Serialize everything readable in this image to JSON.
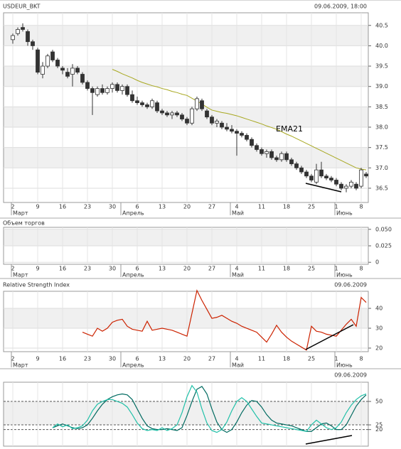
{
  "chart_data": [
    {
      "type": "candlestick",
      "title": "USDEUR_BKT",
      "subtitle": "09.06.2009, 18:00",
      "categories": [
        "2",
        null,
        null,
        null,
        null,
        "9",
        null,
        null,
        null,
        null,
        "16",
        null,
        null,
        null,
        null,
        "23",
        null,
        null,
        null,
        null,
        "30",
        null,
        null,
        null,
        null,
        "6",
        null,
        null,
        null,
        null,
        "13",
        null,
        null,
        null,
        null,
        "20",
        null,
        null,
        null,
        null,
        "27",
        null,
        null,
        null,
        null,
        "4",
        null,
        null,
        null,
        null,
        "11",
        null,
        null,
        null,
        null,
        "18",
        null,
        null,
        null,
        null,
        "25",
        null,
        null,
        null,
        null,
        "1",
        null,
        null,
        null,
        null,
        "8",
        null
      ],
      "month_labels": [
        "Март",
        null,
        null,
        null,
        null,
        null,
        null,
        null,
        null,
        null,
        null,
        null,
        null,
        null,
        null,
        null,
        null,
        null,
        null,
        null,
        null,
        null,
        "Апрель",
        null,
        null,
        null,
        null,
        null,
        null,
        null,
        null,
        null,
        null,
        null,
        null,
        null,
        null,
        null,
        null,
        null,
        null,
        null,
        null,
        null,
        "Май",
        null,
        null,
        null,
        null,
        null,
        null,
        null,
        null,
        null,
        null,
        null,
        null,
        null,
        null,
        null,
        null,
        null,
        null,
        null,
        null,
        "Июнь",
        null,
        null,
        null,
        null,
        null,
        null
      ],
      "ohlc": [
        [
          40.15,
          40.3,
          40.05,
          40.25
        ],
        [
          40.3,
          40.45,
          40.25,
          40.4
        ],
        [
          40.45,
          40.55,
          40.35,
          40.4
        ],
        [
          40.35,
          40.4,
          40.0,
          40.1
        ],
        [
          40.1,
          40.15,
          39.9,
          40.0
        ],
        [
          39.9,
          39.95,
          39.3,
          39.35
        ],
        [
          39.3,
          39.6,
          39.2,
          39.5
        ],
        [
          39.5,
          39.8,
          39.45,
          39.75
        ],
        [
          39.85,
          39.9,
          39.6,
          39.65
        ],
        [
          39.65,
          39.7,
          39.45,
          39.5
        ],
        [
          39.45,
          39.5,
          39.3,
          39.4
        ],
        [
          39.35,
          39.45,
          39.2,
          39.25
        ],
        [
          39.3,
          39.55,
          39.0,
          39.45
        ],
        [
          39.45,
          39.5,
          39.3,
          39.35
        ],
        [
          39.3,
          39.35,
          39.05,
          39.1
        ],
        [
          39.1,
          39.15,
          38.9,
          38.95
        ],
        [
          38.95,
          39.0,
          38.3,
          38.85
        ],
        [
          38.8,
          39.0,
          38.75,
          38.95
        ],
        [
          38.95,
          39.05,
          38.8,
          38.85
        ],
        [
          38.85,
          39.0,
          38.8,
          38.95
        ],
        [
          38.95,
          39.1,
          38.85,
          39.05
        ],
        [
          39.05,
          39.1,
          38.85,
          38.9
        ],
        [
          38.9,
          39.05,
          38.8,
          39.0
        ],
        [
          39.0,
          39.05,
          38.75,
          38.8
        ],
        [
          38.8,
          38.9,
          38.6,
          38.65
        ],
        [
          38.65,
          38.75,
          38.55,
          38.6
        ],
        [
          38.6,
          38.65,
          38.5,
          38.55
        ],
        [
          38.55,
          38.6,
          38.45,
          38.5
        ],
        [
          38.5,
          38.7,
          38.45,
          38.65
        ],
        [
          38.6,
          38.65,
          38.35,
          38.4
        ],
        [
          38.4,
          38.45,
          38.3,
          38.35
        ],
        [
          38.35,
          38.4,
          38.25,
          38.3
        ],
        [
          38.3,
          38.4,
          38.2,
          38.35
        ],
        [
          38.35,
          38.4,
          38.25,
          38.3
        ],
        [
          38.3,
          38.35,
          38.15,
          38.2
        ],
        [
          38.2,
          38.25,
          38.05,
          38.1
        ],
        [
          38.1,
          38.5,
          38.05,
          38.45
        ],
        [
          38.45,
          38.75,
          38.4,
          38.7
        ],
        [
          38.65,
          38.7,
          38.4,
          38.45
        ],
        [
          38.4,
          38.45,
          38.2,
          38.25
        ],
        [
          38.25,
          38.3,
          38.05,
          38.1
        ],
        [
          38.1,
          38.2,
          38.0,
          38.15
        ],
        [
          38.1,
          38.15,
          37.95,
          38.0
        ],
        [
          38.0,
          38.1,
          37.9,
          37.95
        ],
        [
          37.95,
          38.05,
          37.85,
          37.9
        ],
        [
          37.9,
          37.95,
          37.3,
          37.85
        ],
        [
          37.85,
          37.9,
          37.75,
          37.8
        ],
        [
          37.8,
          37.85,
          37.65,
          37.7
        ],
        [
          37.7,
          37.75,
          37.5,
          37.55
        ],
        [
          37.55,
          37.6,
          37.4,
          37.45
        ],
        [
          37.45,
          37.5,
          37.3,
          37.35
        ],
        [
          37.35,
          37.45,
          37.25,
          37.4
        ],
        [
          37.4,
          37.45,
          37.2,
          37.25
        ],
        [
          37.25,
          37.3,
          37.15,
          37.2
        ],
        [
          37.2,
          37.4,
          37.15,
          37.35
        ],
        [
          37.35,
          37.4,
          37.15,
          37.2
        ],
        [
          37.2,
          37.25,
          37.05,
          37.1
        ],
        [
          37.1,
          37.15,
          36.95,
          37.0
        ],
        [
          37.0,
          37.05,
          36.85,
          36.9
        ],
        [
          36.9,
          36.95,
          36.75,
          36.8
        ],
        [
          36.8,
          36.85,
          36.65,
          36.7
        ],
        [
          36.65,
          37.1,
          36.6,
          36.95
        ],
        [
          36.95,
          37.15,
          36.75,
          36.8
        ],
        [
          36.8,
          36.85,
          36.7,
          36.75
        ],
        [
          36.75,
          36.8,
          36.65,
          36.7
        ],
        [
          36.7,
          36.75,
          36.55,
          36.6
        ],
        [
          36.6,
          36.65,
          36.45,
          36.5
        ],
        [
          36.5,
          36.6,
          36.4,
          36.55
        ],
        [
          36.55,
          36.7,
          36.5,
          36.65
        ],
        [
          36.6,
          36.65,
          36.45,
          36.5
        ],
        [
          36.55,
          37.0,
          36.5,
          36.95
        ],
        [
          36.85,
          36.9,
          36.75,
          36.8
        ]
      ],
      "up_color": "#ffffff",
      "down_color": "#333333",
      "overlays": [
        {
          "name": "EMA21",
          "color": "#a8a820",
          "values": [
            null,
            null,
            null,
            null,
            null,
            null,
            null,
            null,
            null,
            null,
            null,
            null,
            null,
            null,
            null,
            null,
            null,
            null,
            null,
            null,
            39.42,
            39.37,
            39.31,
            39.26,
            39.21,
            39.15,
            39.1,
            39.06,
            39.02,
            38.99,
            38.95,
            38.92,
            38.88,
            38.85,
            38.81,
            38.78,
            38.71,
            38.64,
            38.57,
            38.49,
            38.42,
            38.39,
            38.36,
            38.34,
            38.31,
            38.28,
            38.24,
            38.2,
            38.16,
            38.12,
            38.08,
            38.03,
            37.99,
            37.95,
            37.89,
            37.83,
            37.78,
            37.72,
            37.66,
            37.6,
            37.54,
            37.48,
            37.42,
            37.36,
            37.3,
            37.24,
            37.18,
            37.12,
            37.06,
            37.0,
            36.97,
            36.95
          ]
        }
      ],
      "ylim": [
        36.15,
        40.81
      ],
      "yticks": [
        40.5,
        {
          "value": 40,
          "label": "40.0"
        },
        39.5,
        {
          "value": 39,
          "label": "39.0"
        },
        38.5,
        {
          "value": 38,
          "label": "38.0"
        },
        37.5,
        {
          "value": 37,
          "label": "37.0"
        },
        36.5
      ],
      "grid": true
    },
    {
      "type": "volume",
      "title": "Объем торгов",
      "ylim": [
        -0.003,
        0.053
      ],
      "yticks": [
        {
          "value": 0.05,
          "label": "0.050"
        },
        {
          "value": 0.025,
          "label": "0.025"
        },
        0
      ],
      "grid": true
    },
    {
      "type": "line",
      "title": "Relative Strength Index",
      "subtitle": "09.06.2009",
      "series": [
        {
          "color": "#cc2200",
          "values": [
            null,
            null,
            null,
            null,
            null,
            null,
            null,
            null,
            null,
            null,
            null,
            null,
            null,
            null,
            28,
            27,
            26,
            30,
            28.5,
            30,
            33,
            34,
            34.5,
            31,
            29.5,
            29,
            28.5,
            33.5,
            29,
            29.5,
            30,
            29.5,
            29,
            28,
            27,
            26,
            37.5,
            49,
            44,
            39.5,
            35,
            35.5,
            36.5,
            35,
            33.5,
            32.5,
            31,
            30,
            29,
            28,
            25.5,
            23,
            27,
            31.5,
            28,
            25.5,
            23.5,
            22,
            20.5,
            19,
            31,
            28.5,
            28,
            27,
            26.5,
            26,
            29,
            32,
            34.5,
            31,
            45.5,
            43
          ]
        }
      ],
      "ylim": [
        18.2,
        48.6
      ],
      "yticks": [
        40,
        30,
        20
      ],
      "grid": true
    },
    {
      "type": "line",
      "subtitle": "09.06.2009",
      "series": [
        {
          "color": "#006a60",
          "values": [
            null,
            null,
            null,
            null,
            null,
            null,
            null,
            null,
            22,
            24,
            26,
            24,
            22,
            21,
            22,
            25,
            32,
            40,
            47,
            52,
            55,
            57,
            58,
            57,
            52,
            42,
            32,
            24,
            21,
            20,
            20,
            21,
            20,
            19,
            22,
            35,
            50,
            63,
            66,
            58,
            42,
            28,
            20,
            17,
            20,
            28,
            38,
            46,
            51,
            50,
            44,
            36,
            30,
            27,
            26,
            25,
            24,
            22,
            20,
            18,
            18,
            22,
            26,
            27,
            24,
            20,
            20,
            25,
            35,
            45,
            52,
            57
          ]
        },
        {
          "color": "#20c0a8",
          "values": [
            null,
            null,
            null,
            null,
            null,
            null,
            null,
            null,
            22,
            26,
            23,
            25,
            21,
            22,
            24,
            30,
            40,
            47,
            50,
            52,
            52,
            50,
            48,
            44,
            36,
            27,
            21,
            19,
            20,
            19,
            22,
            19,
            21,
            25,
            38,
            55,
            67,
            60,
            42,
            27,
            19,
            17,
            20,
            28,
            40,
            50,
            54,
            50,
            42,
            34,
            27,
            26,
            25,
            24,
            23,
            22,
            21,
            20,
            19,
            18,
            25,
            30,
            26,
            22,
            20,
            22,
            28,
            38,
            46,
            52,
            56,
            58
          ]
        }
      ],
      "ylim": [
        2.3,
        70.5
      ],
      "yticks": [
        50,
        25,
        20
      ],
      "grid": true
    }
  ]
}
